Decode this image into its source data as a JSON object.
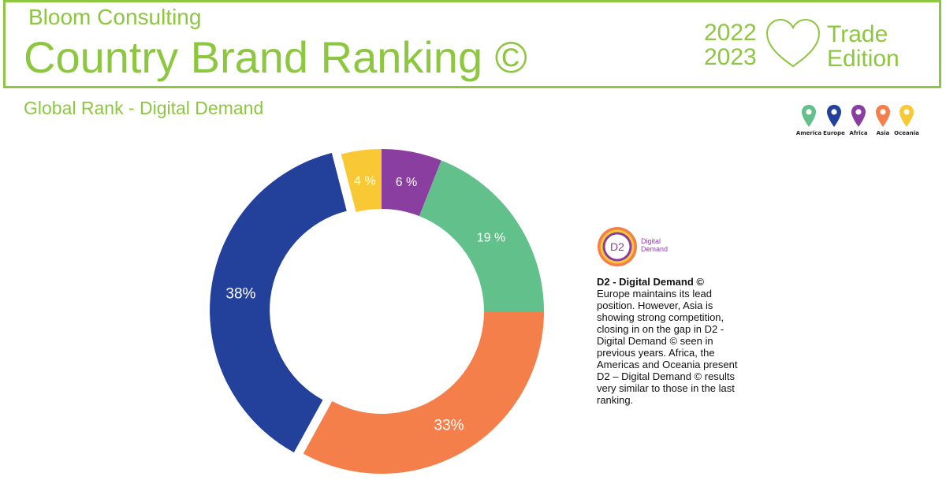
{
  "header": {
    "brand": "Bloom Consulting",
    "title": "Country Brand Ranking ©",
    "years": [
      "2022",
      "2023"
    ],
    "edition": [
      "Trade",
      "Edition"
    ],
    "accent_color": "#8dc63f"
  },
  "subtitle": "Global Rank - Digital Demand",
  "legend": [
    {
      "label": "America",
      "color": "#62c18a"
    },
    {
      "label": "Europe",
      "color": "#23409a"
    },
    {
      "label": "Africa",
      "color": "#8a3fa0"
    },
    {
      "label": "Asia",
      "color": "#f47f4a"
    },
    {
      "label": "Oceania",
      "color": "#f9c935"
    }
  ],
  "badge": {
    "logo_text": "D2",
    "line1": "Digital",
    "line2": "Demand"
  },
  "description": {
    "title": "D2 - Digital Demand ©",
    "body": "Europe maintains its lead position. However, Asia is showing strong competition, closing in on the gap in D2 - Digital Demand © seen in previous years. Africa, the Americas and Oceania present D2 – Digital Demand © results very similar to those in the last ranking."
  },
  "chart_data": {
    "type": "pie",
    "donut": true,
    "start_angle_deg": 0,
    "clockwise": true,
    "slices": [
      {
        "region": "Africa",
        "value": 6,
        "label": "6 %",
        "color": "#8a3fa0"
      },
      {
        "region": "America",
        "value": 19,
        "label": "19 %",
        "color": "#62c18a"
      },
      {
        "region": "Asia",
        "value": 33,
        "label": "33%",
        "color": "#f47f4a"
      },
      {
        "region": "Europe",
        "value": 38,
        "label": "38%",
        "color": "#23409a",
        "exploded": true
      },
      {
        "region": "Oceania",
        "value": 4,
        "label": "4 %",
        "color": "#f9c935"
      }
    ]
  }
}
